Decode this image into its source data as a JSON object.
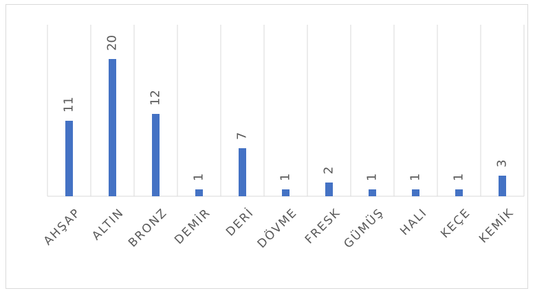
{
  "chart_data": {
    "type": "bar",
    "categories": [
      "AHŞAP",
      "ALTIN",
      "BRONZ",
      "DEMİR",
      "DERİ",
      "DÖVME",
      "FRESK",
      "GÜMÜŞ",
      "HALI",
      "KEÇE",
      "KEMİK"
    ],
    "values": [
      11,
      20,
      12,
      1,
      7,
      1,
      2,
      1,
      1,
      1,
      3
    ],
    "data_labels": [
      "11",
      "20",
      "12",
      "1",
      "7",
      "1",
      "2",
      "1",
      "1",
      "1",
      "3"
    ],
    "ylim": [
      0,
      25
    ],
    "grid": "vertical",
    "bar_color": "#4472c4",
    "title": "",
    "xlabel": "",
    "ylabel": ""
  }
}
